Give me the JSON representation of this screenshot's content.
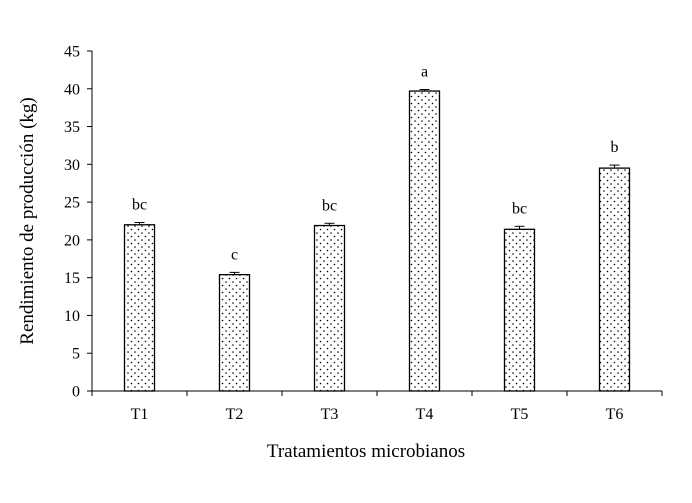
{
  "chart_data": {
    "type": "bar",
    "xlabel": "Tratamientos microbianos",
    "ylabel": "Rendimiento de producción (kg)",
    "categories": [
      "T1",
      "T2",
      "T3",
      "T4",
      "T5",
      "T6"
    ],
    "values": [
      22.0,
      15.4,
      21.9,
      39.7,
      21.4,
      29.5
    ],
    "error": [
      0.3,
      0.3,
      0.3,
      0.2,
      0.4,
      0.4
    ],
    "significance_letters": [
      "bc",
      "c",
      "bc",
      "a",
      "bc",
      "b"
    ],
    "ylim": [
      0,
      45
    ],
    "yticks": [
      "0",
      "5",
      "10",
      "15",
      "20",
      "25",
      "30",
      "35",
      "40",
      "45"
    ],
    "grid": false,
    "legend": "none",
    "bar_fill": "dotted-pattern",
    "colors": {
      "bar_border": "#000000",
      "dots": "#000000",
      "background": "#ffffff"
    }
  }
}
